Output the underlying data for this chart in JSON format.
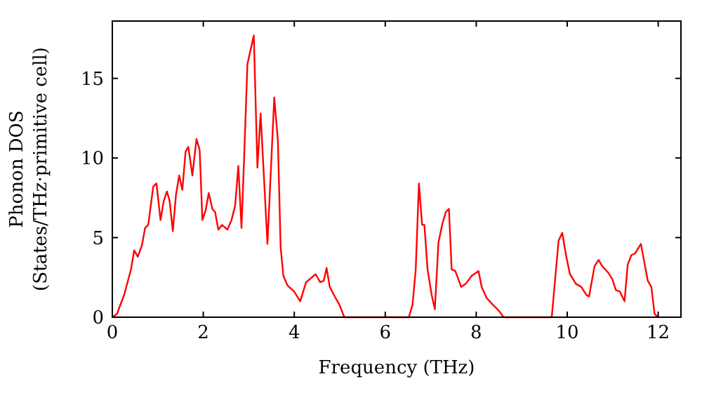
{
  "chart_data": {
    "type": "line",
    "xlabel": "Frequency (THz)",
    "ylabel": "Phonon DOS\n(States/THz·primitive cell)",
    "xlim": [
      0,
      12.5
    ],
    "ylim": [
      0,
      18.6
    ],
    "xticks": [
      0,
      2,
      4,
      6,
      8,
      10,
      12
    ],
    "yticks": [
      0,
      5,
      10,
      15
    ],
    "grid": false,
    "marker": "none",
    "line_style": "solid",
    "series": [
      {
        "color": "#ff0000",
        "x": [
          0,
          0.1,
          0.26,
          0.41,
          0.48,
          0.56,
          0.65,
          0.72,
          0.79,
          0.9,
          0.97,
          1.06,
          1.13,
          1.2,
          1.26,
          1.33,
          1.4,
          1.47,
          1.54,
          1.61,
          1.67,
          1.76,
          1.85,
          1.92,
          1.98,
          2.05,
          2.12,
          2.2,
          2.26,
          2.33,
          2.41,
          2.53,
          2.62,
          2.7,
          2.77,
          2.84,
          2.9,
          2.97,
          3.11,
          3.19,
          3.26,
          3.41,
          3.56,
          3.64,
          3.7,
          3.76,
          3.85,
          4.0,
          4.13,
          4.26,
          4.47,
          4.57,
          4.65,
          4.71,
          4.78,
          4.89,
          4.99,
          5.1,
          6.52,
          6.6,
          6.67,
          6.74,
          6.81,
          6.86,
          6.93,
          7.02,
          7.09,
          7.17,
          7.25,
          7.33,
          7.4,
          7.46,
          7.54,
          7.67,
          7.77,
          7.9,
          8.05,
          8.12,
          8.23,
          8.36,
          8.5,
          8.6,
          9.66,
          9.81,
          9.89,
          9.98,
          10.06,
          10.19,
          10.31,
          10.42,
          10.48,
          10.6,
          10.69,
          10.77,
          10.9,
          10.99,
          11.07,
          11.16,
          11.26,
          11.33,
          11.41,
          11.49,
          11.62,
          11.77,
          11.85,
          11.92,
          12.0
        ],
        "values": [
          0,
          0.2,
          1.4,
          3.0,
          4.2,
          3.8,
          4.5,
          5.6,
          5.8,
          8.2,
          8.4,
          6.1,
          7.3,
          7.9,
          7.3,
          5.4,
          7.7,
          8.9,
          8.0,
          10.4,
          10.7,
          8.9,
          11.2,
          10.5,
          6.1,
          6.7,
          7.8,
          6.8,
          6.6,
          5.5,
          5.8,
          5.5,
          6.1,
          7.0,
          9.5,
          5.6,
          10.2,
          15.9,
          17.7,
          9.4,
          12.8,
          4.6,
          13.8,
          11.1,
          4.4,
          2.6,
          2.0,
          1.6,
          1.0,
          2.2,
          2.7,
          2.2,
          2.3,
          3.1,
          1.9,
          1.3,
          0.8,
          0,
          0,
          0.8,
          3.0,
          8.4,
          5.8,
          5.8,
          3.0,
          1.4,
          0.5,
          4.7,
          5.8,
          6.6,
          6.8,
          3.0,
          2.9,
          1.9,
          2.1,
          2.6,
          2.9,
          1.9,
          1.2,
          0.8,
          0.4,
          0,
          0,
          4.8,
          5.3,
          3.8,
          2.7,
          2.1,
          1.9,
          1.4,
          1.3,
          3.2,
          3.6,
          3.2,
          2.8,
          2.4,
          1.7,
          1.6,
          1.0,
          3.3,
          3.9,
          4.0,
          4.6,
          2.3,
          1.9,
          0.2,
          0
        ]
      }
    ]
  }
}
